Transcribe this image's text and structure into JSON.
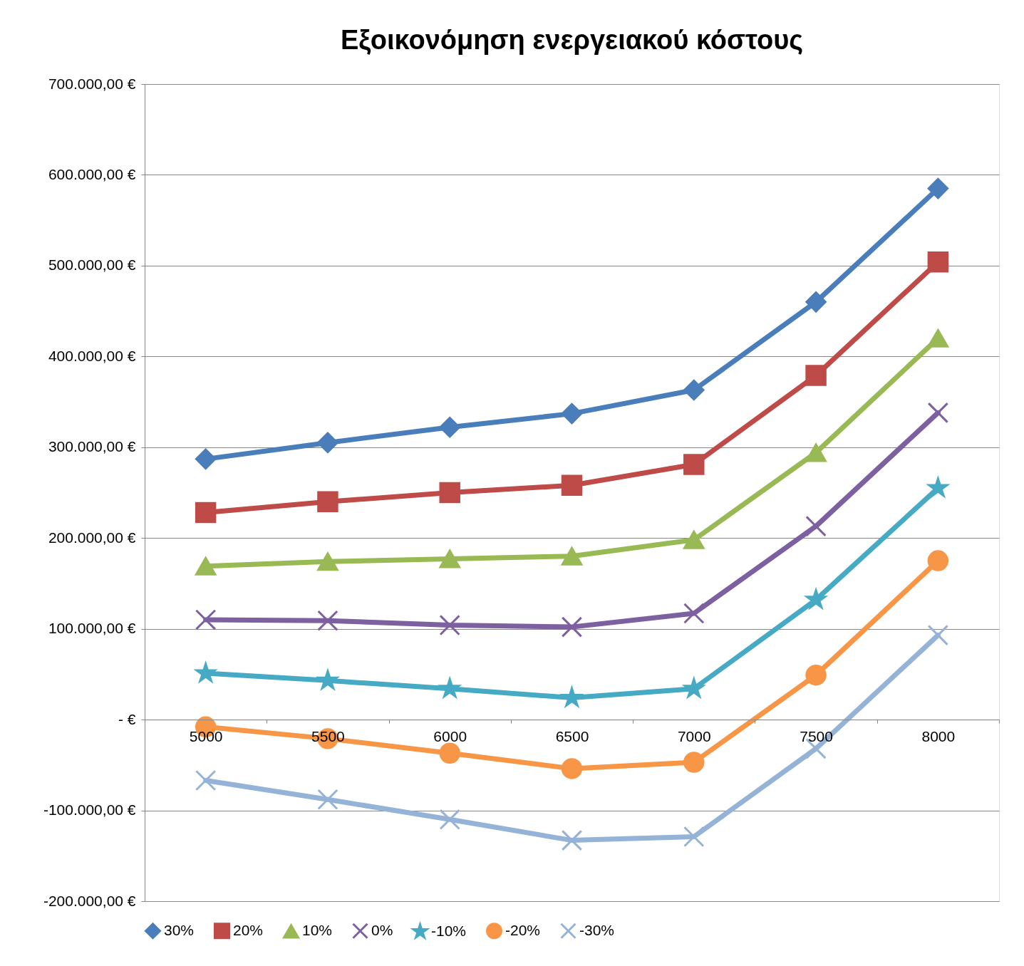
{
  "chart_data": {
    "type": "line",
    "title": "Εξοικονόμηση ενεργειακού κόστους",
    "categories": [
      "5000",
      "5500",
      "6000",
      "6500",
      "7000",
      "7500",
      "8000"
    ],
    "series": [
      {
        "name": "30%",
        "color": "#4a7ebb",
        "marker": "diamond",
        "values": [
          287000,
          305000,
          322000,
          337000,
          363000,
          460000,
          585000
        ]
      },
      {
        "name": "20%",
        "color": "#be4b48",
        "marker": "square",
        "values": [
          228000,
          240000,
          250000,
          258000,
          281000,
          379000,
          504000
        ]
      },
      {
        "name": "10%",
        "color": "#98b954",
        "marker": "triangle",
        "values": [
          169000,
          174000,
          177000,
          180000,
          198000,
          294000,
          420000
        ]
      },
      {
        "name": "0%",
        "color": "#7d60a0",
        "marker": "cross",
        "values": [
          110000,
          109000,
          104000,
          102000,
          117000,
          213000,
          338000
        ]
      },
      {
        "name": "-10%",
        "color": "#46aac5",
        "marker": "star",
        "values": [
          51000,
          43000,
          34000,
          24000,
          34000,
          132000,
          255000
        ]
      },
      {
        "name": "-20%",
        "color": "#f79646",
        "marker": "circle",
        "values": [
          -8000,
          -21000,
          -37000,
          -54000,
          -47000,
          49000,
          175000
        ]
      },
      {
        "name": "-30%",
        "color": "#95b3d7",
        "marker": "cross",
        "values": [
          -67000,
          -88000,
          -110000,
          -133000,
          -129000,
          -32000,
          93000
        ]
      }
    ],
    "ylim": [
      -200000,
      700000
    ],
    "yticks": [
      {
        "value": -200000,
        "label": "-200.000,00 €"
      },
      {
        "value": -100000,
        "label": "-100.000,00 €"
      },
      {
        "value": 0,
        "label": "-  €"
      },
      {
        "value": 100000,
        "label": "100.000,00 €"
      },
      {
        "value": 200000,
        "label": "200.000,00 €"
      },
      {
        "value": 300000,
        "label": "300.000,00 €"
      },
      {
        "value": 400000,
        "label": "400.000,00 €"
      },
      {
        "value": 500000,
        "label": "500.000,00 €"
      },
      {
        "value": 600000,
        "label": "600.000,00 €"
      },
      {
        "value": 700000,
        "label": "700.000,00 €"
      }
    ],
    "grid": "y",
    "legend": "bottom",
    "line_style": "solid"
  }
}
